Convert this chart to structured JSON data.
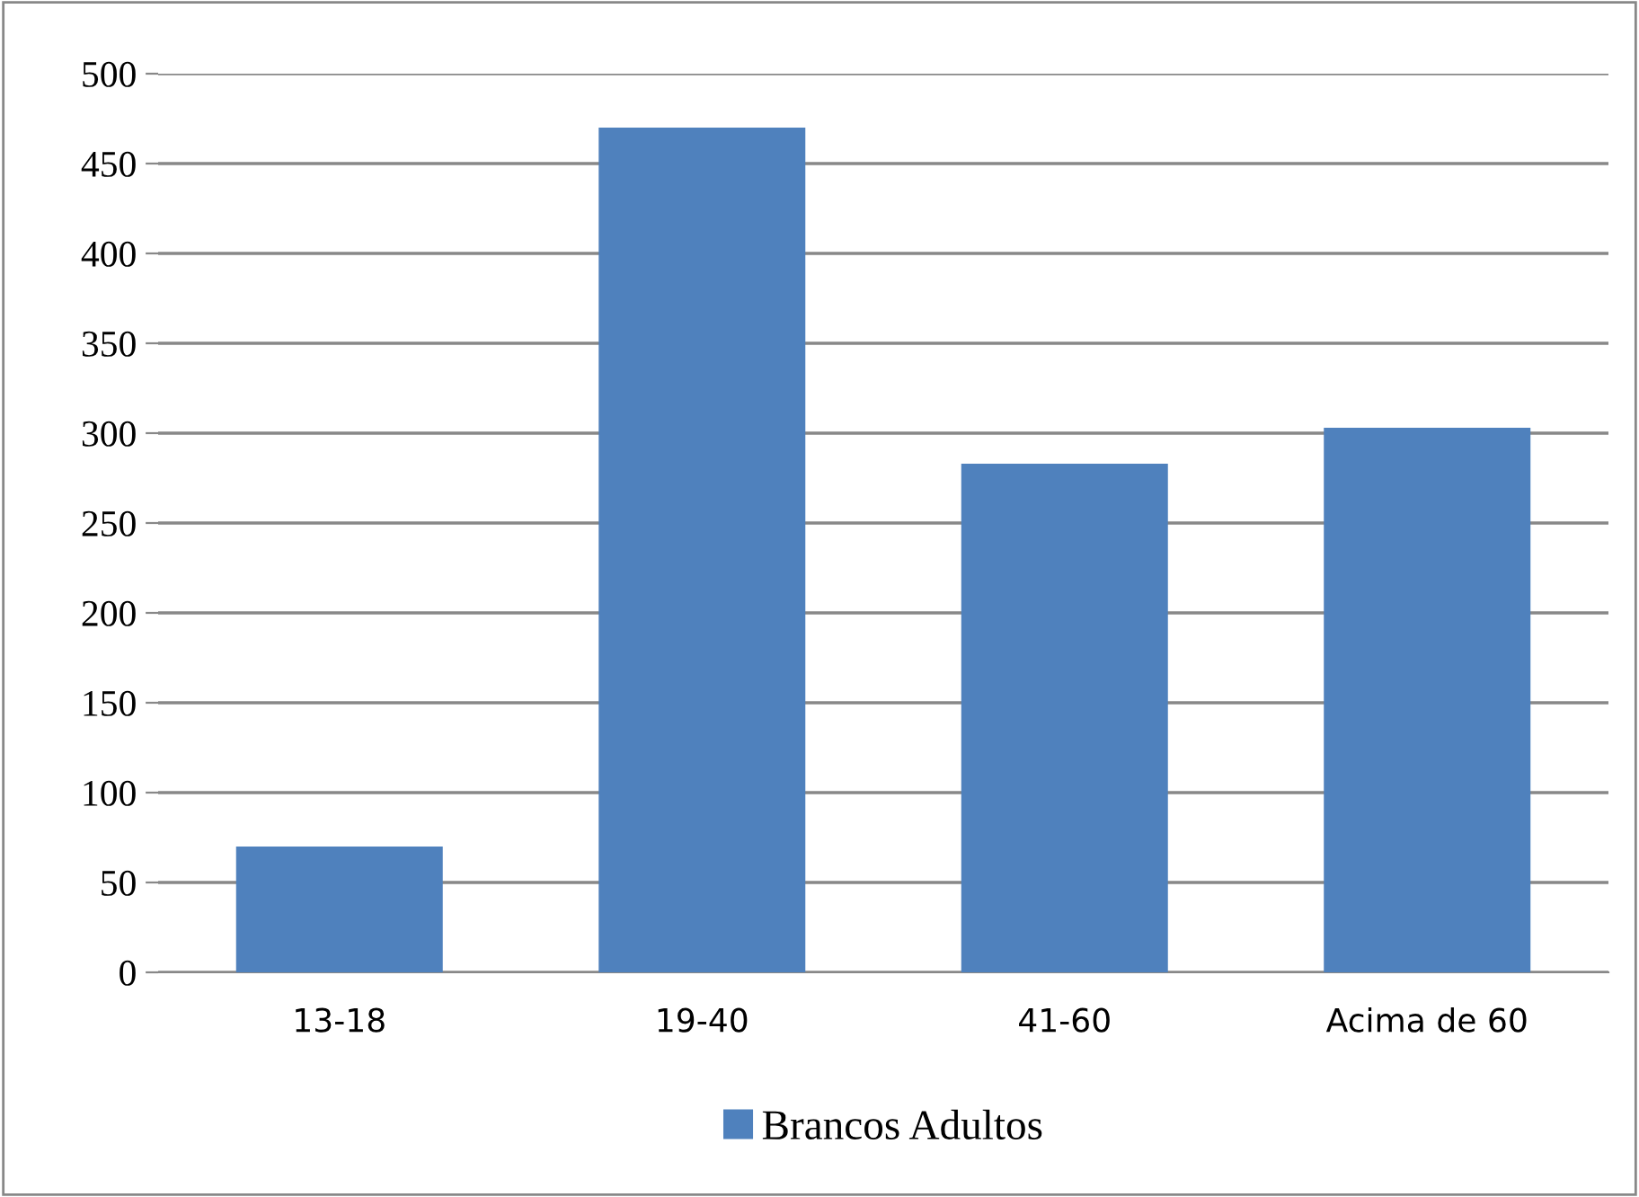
{
  "chart_data": {
    "type": "bar",
    "categories": [
      "13-18",
      "19-40",
      "41-60",
      "Acima de 60"
    ],
    "series": [
      {
        "name": "Brancos Adultos",
        "color": "#4f81bd",
        "values": [
          70,
          470,
          283,
          303
        ]
      }
    ],
    "ylim": [
      0,
      500
    ],
    "yticks": [
      0,
      50,
      100,
      150,
      200,
      250,
      300,
      350,
      400,
      450,
      500
    ],
    "grid": "y",
    "legend": "bottom"
  }
}
